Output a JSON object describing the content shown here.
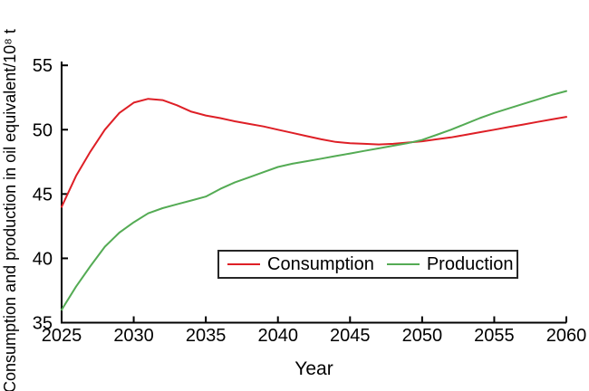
{
  "figure": {
    "y_axis_label": "Consumption and production in oil equivalent/10⁸ t",
    "x_axis_label": "Year"
  },
  "legend": {
    "items": [
      {
        "label": "Consumption",
        "color": "#de1f26"
      },
      {
        "label": "Production",
        "color": "#54ab54"
      }
    ]
  },
  "chart_data": {
    "type": "line",
    "title": "",
    "xlabel": "Year",
    "ylabel": "Consumption and production in oil equivalent/10⁸ t",
    "xlim": [
      2025,
      2060
    ],
    "ylim": [
      35,
      55.3
    ],
    "x_ticks": [
      2025,
      2030,
      2035,
      2040,
      2045,
      2050,
      2055,
      2060
    ],
    "y_ticks": [
      35,
      40,
      45,
      50,
      55
    ],
    "grid": false,
    "legend_position": "inside lower center",
    "axis_color": "#000000",
    "x": [
      2025,
      2026,
      2027,
      2028,
      2029,
      2030,
      2031,
      2032,
      2033,
      2034,
      2035,
      2036,
      2037,
      2038,
      2039,
      2040,
      2041,
      2042,
      2043,
      2044,
      2045,
      2046,
      2047,
      2048,
      2049,
      2050,
      2051,
      2052,
      2053,
      2054,
      2055,
      2056,
      2057,
      2058,
      2059,
      2060
    ],
    "series": [
      {
        "name": "Consumption",
        "color": "#de1f26",
        "values": [
          44.0,
          46.4,
          48.3,
          50.0,
          51.3,
          52.1,
          52.4,
          52.3,
          51.9,
          51.4,
          51.1,
          50.9,
          50.65,
          50.45,
          50.25,
          50.0,
          49.75,
          49.5,
          49.25,
          49.05,
          48.95,
          48.9,
          48.85,
          48.9,
          49.0,
          49.1,
          49.25,
          49.4,
          49.6,
          49.8,
          50.0,
          50.2,
          50.4,
          50.6,
          50.8,
          51.0
        ]
      },
      {
        "name": "Production",
        "color": "#54ab54",
        "values": [
          36.0,
          37.8,
          39.4,
          40.9,
          42.0,
          42.8,
          43.5,
          43.9,
          44.2,
          44.5,
          44.8,
          45.4,
          45.9,
          46.3,
          46.7,
          47.1,
          47.35,
          47.55,
          47.75,
          47.95,
          48.15,
          48.35,
          48.55,
          48.75,
          48.95,
          49.2,
          49.6,
          50.0,
          50.45,
          50.9,
          51.3,
          51.65,
          52.0,
          52.35,
          52.7,
          53.0
        ]
      }
    ]
  }
}
